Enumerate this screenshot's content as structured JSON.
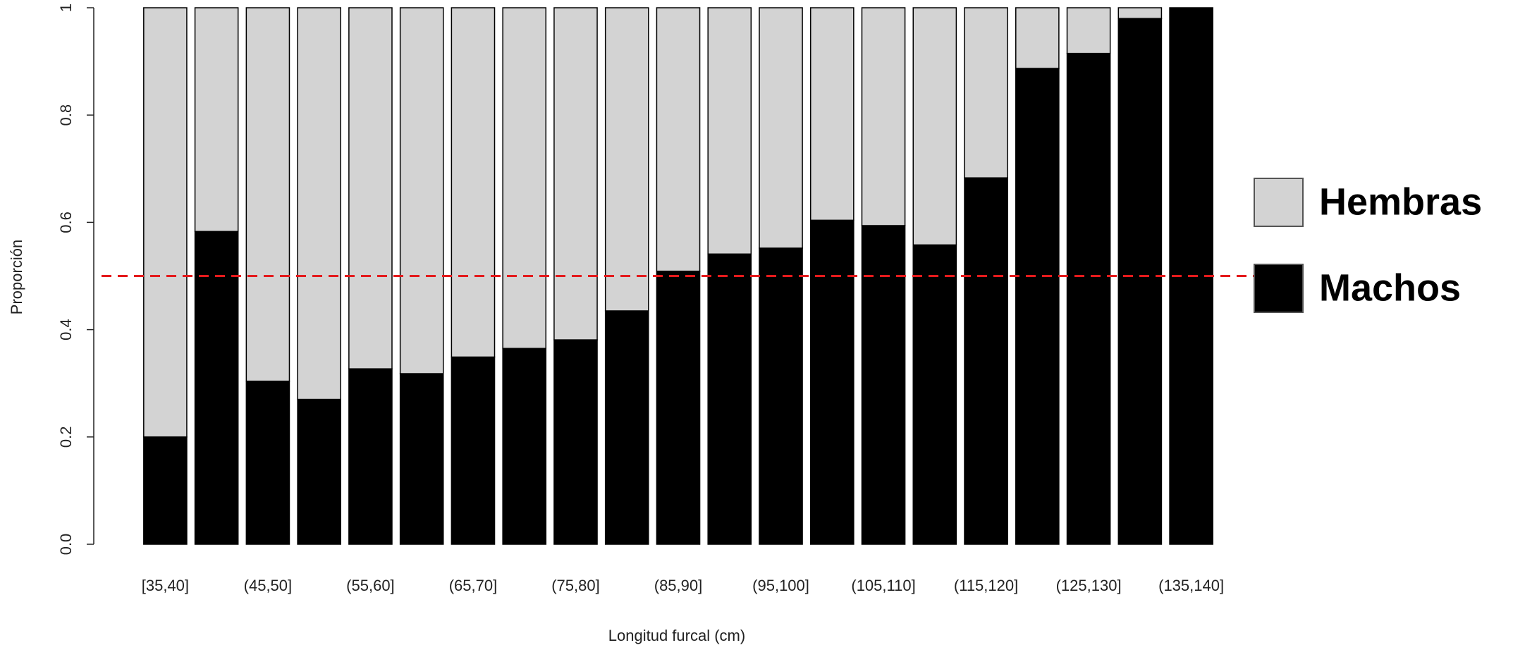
{
  "chart_data": {
    "type": "stacked-bar",
    "x_label": "Longitud furcal (cm)",
    "y_label": "Proporción",
    "categories": [
      "[35,40]",
      null,
      "(45,50]",
      null,
      "(55,60]",
      null,
      "(65,70]",
      null,
      "(75,80]",
      null,
      "(85,90]",
      null,
      "(95,100]",
      null,
      "(105,110]",
      null,
      "(115,120]",
      null,
      "(125,130]",
      null,
      "(135,140]"
    ],
    "series": [
      {
        "name": "Machos",
        "color": "#000000",
        "values": [
          0.2,
          0.583,
          0.304,
          0.27,
          0.327,
          0.318,
          0.349,
          0.365,
          0.381,
          0.435,
          0.509,
          0.541,
          0.552,
          0.604,
          0.594,
          0.558,
          0.683,
          0.887,
          0.915,
          0.98,
          1.0
        ]
      },
      {
        "name": "Hembras",
        "color": "#d3d3d3",
        "values": [
          0.8,
          0.417,
          0.696,
          0.73,
          0.673,
          0.682,
          0.651,
          0.635,
          0.619,
          0.565,
          0.491,
          0.459,
          0.448,
          0.396,
          0.406,
          0.442,
          0.317,
          0.113,
          0.085,
          0.02,
          0
        ]
      }
    ],
    "ylim": [
      0,
      1
    ],
    "yticks": [
      {
        "value": 0,
        "label": "0.0"
      },
      0.2,
      0.4,
      0.6,
      0.8,
      1
    ],
    "reference_line": {
      "value": 0.5,
      "color": "#e41a1c"
    }
  }
}
